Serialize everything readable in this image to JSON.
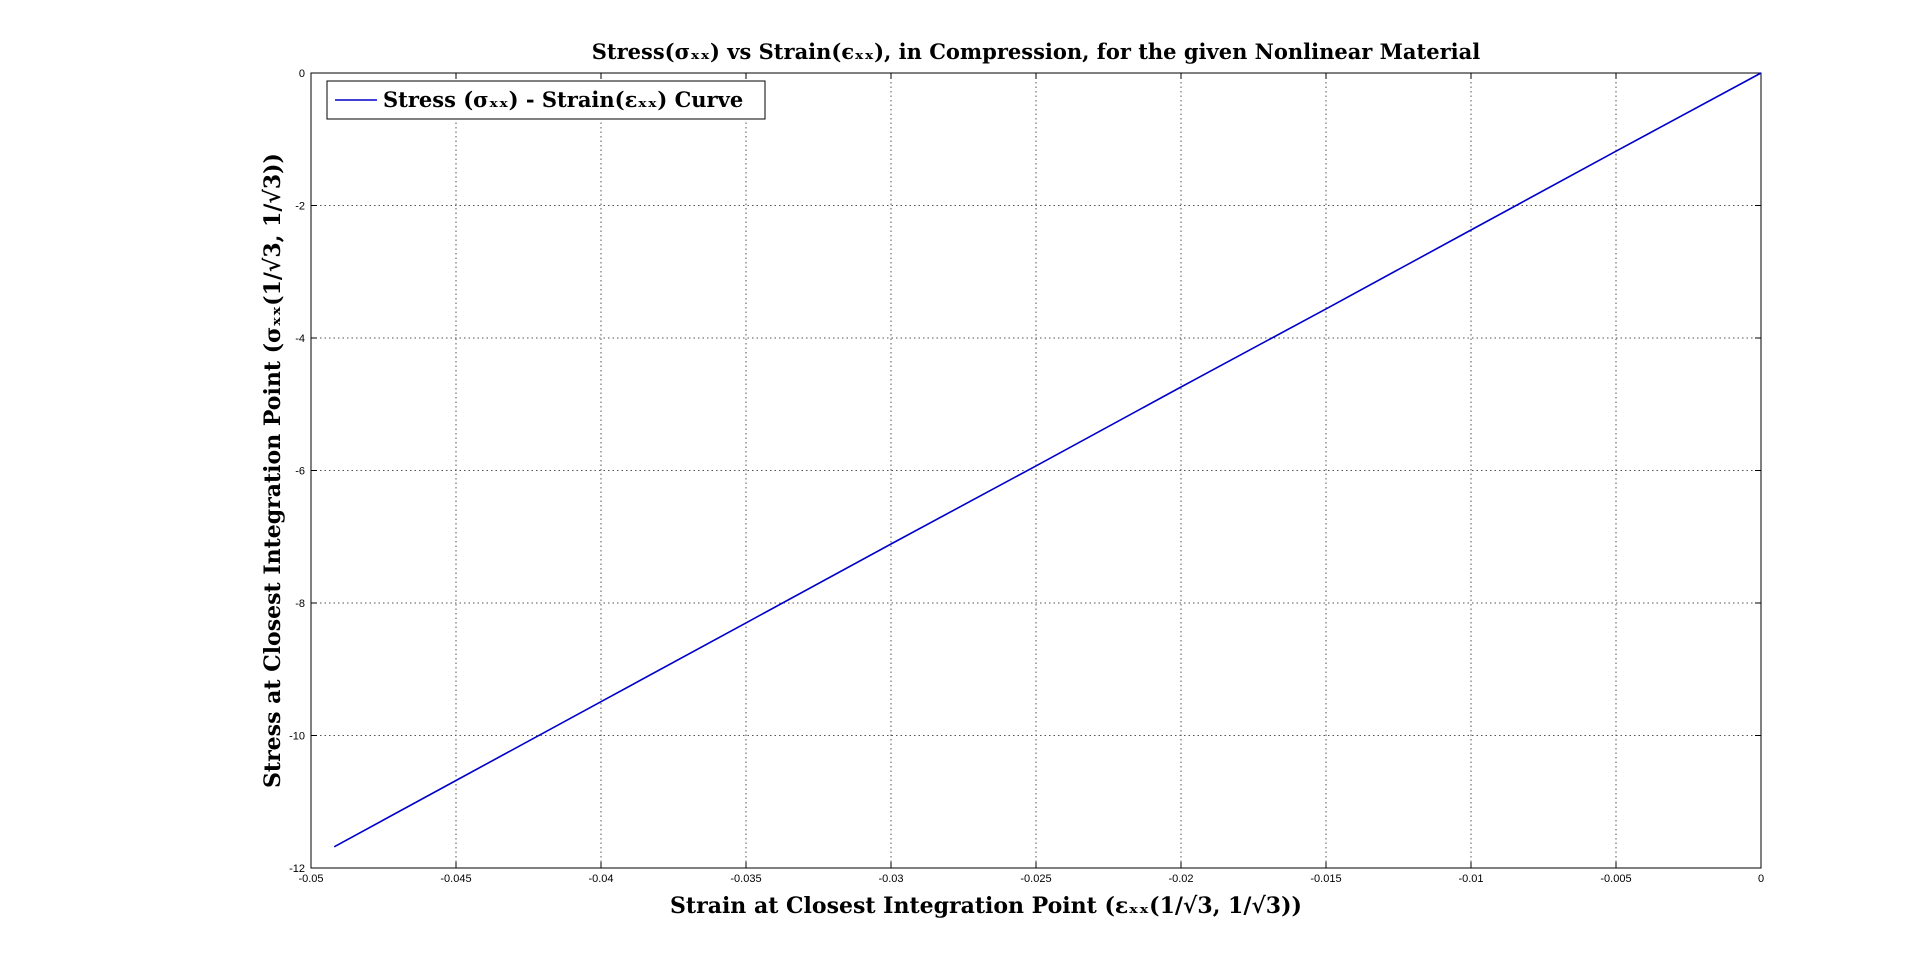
{
  "chart_data": {
    "type": "line",
    "title": "Stress(σₓₓ) vs Strain(ϵₓₓ), in Compression, for the given Nonlinear Material",
    "xlabel": "Strain at Closest Integration Point (εₓₓ(1/√3, 1/√3))",
    "ylabel": "Stress at Closest Integration Point (σₓₓ(1/√3, 1/√3))",
    "xlim": [
      -0.05,
      0
    ],
    "ylim": [
      -12,
      0
    ],
    "xticks": [
      -0.05,
      -0.045,
      -0.04,
      -0.035,
      -0.03,
      -0.025,
      -0.02,
      -0.015,
      -0.01,
      -0.005,
      0
    ],
    "xtick_labels": [
      "-0.05",
      "-0.045",
      "-0.04",
      "-0.035",
      "-0.03",
      "-0.025",
      "-0.02",
      "-0.015",
      "-0.01",
      "-0.005",
      "0"
    ],
    "yticks": [
      -12,
      -10,
      -8,
      -6,
      -4,
      -2,
      0
    ],
    "ytick_labels": [
      "-12",
      "-10",
      "-8",
      "-6",
      "-4",
      "-2",
      "0"
    ],
    "grid": true,
    "legend_position": "top-left",
    "series": [
      {
        "name": "Stress (σₓₓ) - Strain(εₓₓ) Curve",
        "color": "#0000cc",
        "x": [
          -0.0492,
          -0.045,
          -0.04,
          -0.035,
          -0.03,
          -0.025,
          -0.02,
          -0.015,
          -0.01,
          -0.005,
          0
        ],
        "y": [
          -11.68,
          -10.68,
          -9.49,
          -8.3,
          -7.11,
          -5.93,
          -4.74,
          -3.56,
          -2.37,
          -1.18,
          0
        ]
      }
    ]
  }
}
